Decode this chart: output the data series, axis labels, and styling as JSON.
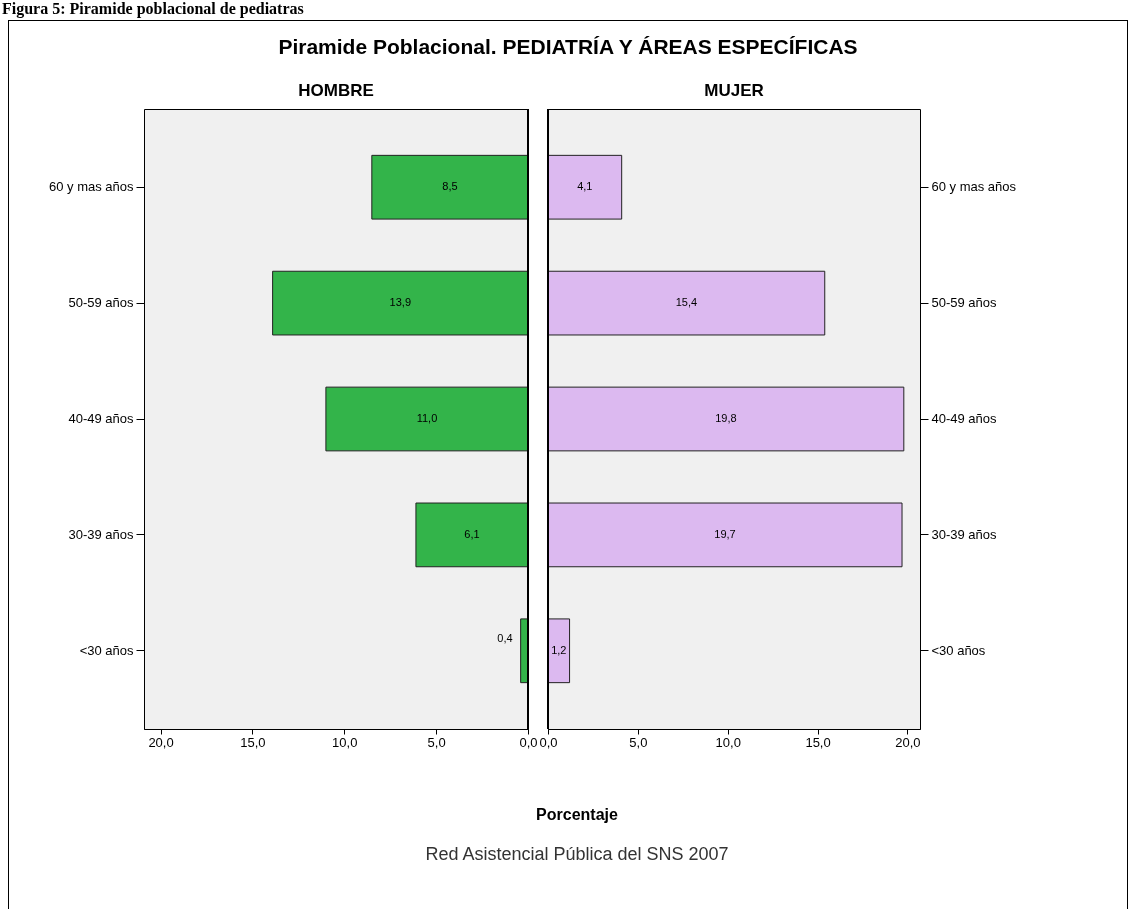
{
  "chart_data": [
    {
      "type": "bar",
      "orientation": "horizontal",
      "title": "HOMBRE",
      "xlabel": "Porcentaje",
      "annotations": [
        "Figura 5: Piramide poblacional de pediatras",
        "Piramide Poblacional.  PEDIATRÍA Y ÁREAS ESPECÍFICAS",
        "Red Asistencial Pública del SNS 2007"
      ],
      "categories": [
        "60 y mas años",
        "50-59 años",
        "40-49 años",
        "30-39 años",
        "<30 años"
      ],
      "series": [
        {
          "color": "#33b44a",
          "values": [
            8.5,
            13.9,
            11.0,
            6.1,
            0.4
          ],
          "value_labels": [
            "8,5",
            "13,9",
            "11,0",
            "6,1",
            "0,4"
          ]
        }
      ],
      "xlim": [
        20.9,
        0
      ],
      "xticks": [
        {
          "value": 20,
          "label": "20,0"
        },
        {
          "value": 15,
          "label": "15,0"
        },
        {
          "value": 10,
          "label": "10,0"
        },
        {
          "value": 5,
          "label": "5,0"
        },
        {
          "value": 0,
          "label": "0,0"
        }
      ],
      "grid": false
    },
    {
      "type": "bar",
      "orientation": "horizontal",
      "title": "MUJER",
      "categories": [
        "60 y mas años",
        "50-59 años",
        "40-49 años",
        "30-39 años",
        "<30 años"
      ],
      "series": [
        {
          "color": "#dcb9f0",
          "values": [
            4.1,
            15.4,
            19.8,
            19.7,
            1.2
          ],
          "value_labels": [
            "4,1",
            "15,4",
            "19,8",
            "19,7",
            "1,2"
          ]
        }
      ],
      "xlim": [
        0,
        20.7
      ],
      "xticks": [
        {
          "value": 0,
          "label": "0,0"
        },
        {
          "value": 5,
          "label": "5,0"
        },
        {
          "value": 10,
          "label": "10,0"
        },
        {
          "value": 15,
          "label": "15,0"
        },
        {
          "value": 20,
          "label": "20,0"
        }
      ],
      "grid": false
    }
  ]
}
